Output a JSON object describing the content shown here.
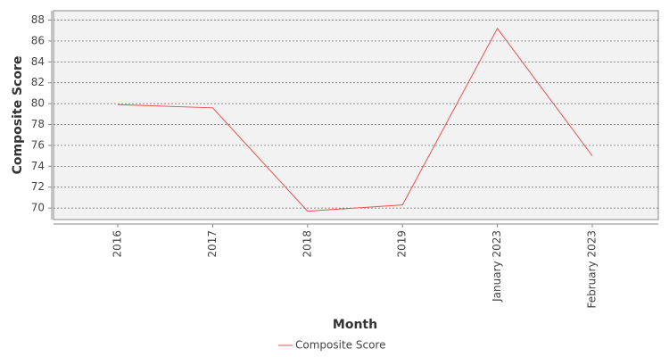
{
  "chart_data": {
    "type": "line",
    "x_label": "Month",
    "y_label": "Composite Score",
    "categories": [
      "2016",
      "2017",
      "2018",
      "2019",
      "January 2023",
      "February 2023"
    ],
    "series": [
      {
        "name": "Composite Score",
        "color": "#e8524f",
        "values": [
          79.9,
          79.6,
          69.7,
          70.3,
          87.2,
          75.0
        ]
      }
    ],
    "ylim": [
      68.9,
      88.9
    ],
    "yticks": [
      70,
      72,
      74,
      76,
      78,
      80,
      82,
      84,
      86,
      88
    ],
    "grid": true,
    "legend": "bottom"
  }
}
